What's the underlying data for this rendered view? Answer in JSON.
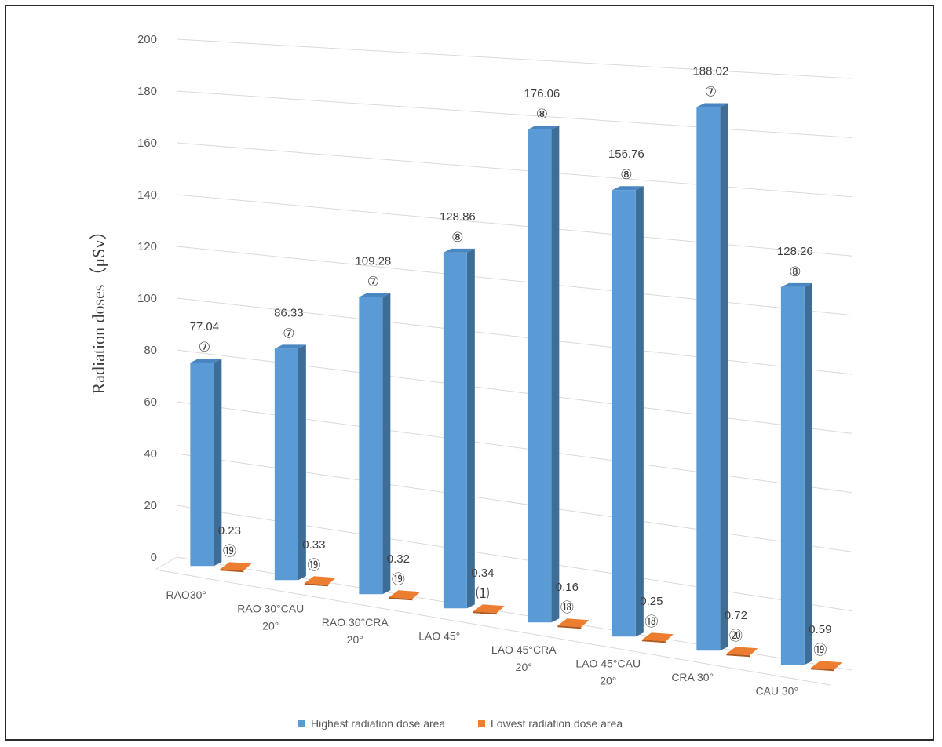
{
  "chart_data": {
    "type": "bar",
    "style": "3d-clustered-column",
    "ylabel": "Radiation doses（μSv）",
    "ylim": [
      0,
      200
    ],
    "yticks": [
      0,
      20,
      40,
      60,
      80,
      100,
      120,
      140,
      160,
      180,
      200
    ],
    "grid": true,
    "legend_position": "bottom",
    "categories": [
      [
        "RAO30°"
      ],
      [
        "RAO 30°CAU",
        "20°"
      ],
      [
        "RAO 30°CRA",
        "20°"
      ],
      [
        "LAO 45°"
      ],
      [
        "LAO 45°CRA",
        "20°"
      ],
      [
        "LAO 45°CAU",
        "20°"
      ],
      [
        "CRA 30°"
      ],
      [
        "CAU 30°"
      ]
    ],
    "series": [
      {
        "name": "Highest radiation dose area",
        "color": "#5b9bd5",
        "values": [
          77.04,
          86.33,
          109.28,
          128.86,
          176.06,
          156.76,
          188.02,
          128.26
        ],
        "labels": [
          "77.04",
          "86.33",
          "109.28",
          "128.86",
          "176.06",
          "156.76",
          "188.02",
          "128.26"
        ],
        "markers": [
          "⑦",
          "⑦",
          "⑦",
          "⑧",
          "⑧",
          "⑧",
          "⑦",
          "⑧"
        ]
      },
      {
        "name": "Lowest radiation dose area",
        "color": "#ed7d31",
        "values": [
          0.23,
          0.33,
          0.32,
          0.34,
          0.16,
          0.25,
          0.72,
          0.59
        ],
        "labels": [
          "0.23",
          "0.33",
          "0.32",
          "0.34",
          "0.16",
          "0.25",
          "0.72",
          "0.59"
        ],
        "markers": [
          "⑲",
          "⑲",
          "⑲",
          "⑴",
          "⑱",
          "⑱",
          "⑳",
          "⑲"
        ]
      }
    ]
  }
}
